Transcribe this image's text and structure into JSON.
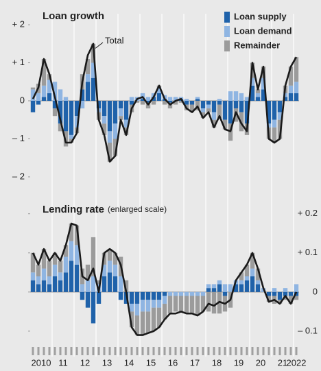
{
  "chart_data": [
    {
      "type": "bar",
      "stacked": true,
      "title": "Loan growth",
      "ylim": [
        -2.2,
        2.2
      ],
      "yticks": [
        {
          "value": 2,
          "label": "+ 2"
        },
        {
          "value": 1,
          "label": "+ 1"
        },
        0,
        {
          "value": -1,
          "label": "– 1"
        },
        {
          "value": -2,
          "label": "– 2"
        }
      ],
      "legend": "top-right",
      "series": [
        {
          "name": "Loan supply",
          "color": "#1f62aa",
          "values": [
            -0.3,
            -0.1,
            0.1,
            0.2,
            -0.2,
            -0.6,
            -0.8,
            -0.9,
            -0.4,
            0.3,
            0.5,
            0.6,
            -0.2,
            -0.4,
            -0.8,
            -0.6,
            -0.2,
            -0.5,
            -0.1,
            0,
            0.05,
            -0.05,
            0.1,
            0.2,
            0.05,
            -0.05,
            0,
            0.05,
            -0.1,
            -0.1,
            0.05,
            -0.2,
            -0.1,
            -0.3,
            -0.1,
            -0.5,
            -0.6,
            -0.2,
            -0.3,
            -0.6,
            0.4,
            0.1,
            0.3,
            -0.6,
            -0.5,
            -0.3,
            0.1,
            0.2,
            0.2
          ]
        },
        {
          "name": "Loan demand",
          "color": "#8fb5e2",
          "values": [
            0.3,
            0.2,
            0.3,
            0.35,
            0.5,
            0.3,
            0.1,
            -0.1,
            -0.3,
            -0.2,
            0.2,
            0.4,
            -0.1,
            -0.2,
            -0.3,
            -0.4,
            -0.2,
            -0.2,
            0.1,
            0.1,
            0.15,
            0.1,
            0.1,
            0.15,
            0.1,
            0.1,
            0.1,
            0.05,
            0.05,
            0,
            0.05,
            -0.1,
            -0.1,
            -0.2,
            0.05,
            0,
            0.25,
            0.25,
            0.2,
            0.1,
            0.2,
            0.1,
            0.3,
            -0.1,
            -0.2,
            -0.2,
            0.1,
            0.2,
            0.3
          ]
        },
        {
          "name": "Remainder",
          "color": "#9b9b9b",
          "values": [
            0.05,
            0.25,
            0.7,
            0.15,
            -0.2,
            -0.2,
            -0.4,
            -0.1,
            -0.15,
            0.4,
            0.4,
            0.5,
            -0.2,
            -0.3,
            -0.5,
            -0.45,
            -0.1,
            -0.2,
            -0.2,
            -0.05,
            -0.1,
            -0.15,
            -0.1,
            0.05,
            -0.1,
            -0.15,
            -0.1,
            -0.05,
            -0.15,
            -0.2,
            -0.25,
            -0.15,
            -0.1,
            -0.2,
            -0.35,
            -0.25,
            -0.45,
            -0.35,
            -0.5,
            -0.3,
            0.4,
            0.1,
            0.3,
            -0.3,
            -0.4,
            -0.5,
            0.2,
            0.5,
            0.65
          ]
        },
        {
          "name": "Total",
          "type": "line",
          "color": "#1a1a1a",
          "values": [
            0.05,
            0.35,
            1.1,
            0.7,
            0.1,
            -0.5,
            -1.1,
            -1.1,
            -0.85,
            0.5,
            1.2,
            1.5,
            -0.5,
            -0.9,
            -1.6,
            -1.45,
            -0.5,
            -0.9,
            -0.2,
            0.05,
            0.1,
            -0.1,
            0.1,
            0.4,
            0.05,
            -0.1,
            0,
            0.05,
            -0.2,
            -0.3,
            -0.15,
            -0.45,
            -0.3,
            -0.7,
            -0.4,
            -0.75,
            -0.8,
            -0.3,
            -0.6,
            -0.8,
            1.0,
            0.3,
            0.9,
            -1.0,
            -1.1,
            -1.0,
            0.4,
            0.9,
            1.15
          ]
        }
      ]
    },
    {
      "type": "bar",
      "stacked": true,
      "title": "Lending rate",
      "subtitle": "(enlarged scale)",
      "ylim": [
        -0.13,
        0.21
      ],
      "yticks": [
        {
          "value": 0.2,
          "label": "+ 0.2"
        },
        {
          "value": 0.1,
          "label": "+ 0.1"
        },
        0,
        {
          "value": -0.1,
          "label": "– 0.1"
        }
      ],
      "categories": [
        "2010",
        null,
        null,
        null,
        "11",
        null,
        null,
        null,
        "12",
        null,
        null,
        null,
        "13",
        null,
        null,
        null,
        "14",
        null,
        null,
        null,
        "15",
        null,
        null,
        null,
        "16",
        null,
        null,
        null,
        "17",
        null,
        null,
        null,
        "18",
        null,
        null,
        null,
        "19",
        null,
        null,
        null,
        "20",
        null,
        null,
        null,
        "21",
        null,
        null,
        null,
        "2022"
      ],
      "series": [
        {
          "color": "#1f62aa",
          "values": [
            0.03,
            0.02,
            0.03,
            0.02,
            0.04,
            0.03,
            0.05,
            0.08,
            0.07,
            -0.02,
            -0.04,
            -0.08,
            -0.03,
            0.04,
            0.05,
            0.04,
            -0.02,
            -0.03,
            -0.03,
            -0.03,
            -0.02,
            -0.02,
            -0.02,
            -0.02,
            -0.01,
            0,
            0,
            0,
            0,
            0,
            0,
            0,
            0.01,
            0.01,
            0.02,
            -0.01,
            0,
            0.02,
            0.02,
            0.03,
            0.04,
            0.02,
            0,
            -0.01,
            -0.01,
            -0.02,
            -0.01,
            -0.01,
            -0.01
          ]
        },
        {
          "color": "#8fb5e2",
          "values": [
            0.02,
            0.02,
            0.03,
            0.02,
            0.03,
            0.02,
            0.04,
            0.05,
            0.05,
            0.02,
            0.03,
            0.04,
            0.02,
            0.03,
            0.03,
            0.03,
            0.04,
            0,
            -0.02,
            -0.03,
            -0.03,
            -0.03,
            -0.02,
            -0.02,
            -0.02,
            -0.01,
            -0.01,
            -0.01,
            -0.01,
            -0.01,
            -0.01,
            -0.01,
            0.01,
            0.01,
            0.01,
            0.02,
            0.02,
            0.01,
            0.01,
            0.01,
            0.02,
            0.01,
            0.01,
            0,
            0.01,
            0,
            0.01,
            0,
            0.02
          ]
        },
        {
          "color": "#9b9b9b",
          "values": [
            0.05,
            0.03,
            0.05,
            0.04,
            0.03,
            0.03,
            0.03,
            0.045,
            0.05,
            0.04,
            0.04,
            0.1,
            0.01,
            0.03,
            0.03,
            0.03,
            0.05,
            0.03,
            -0.04,
            -0.05,
            -0.06,
            -0.055,
            -0.06,
            -0.05,
            -0.04,
            -0.045,
            -0.04,
            -0.04,
            -0.045,
            -0.045,
            -0.05,
            -0.04,
            -0.05,
            -0.055,
            -0.055,
            -0.04,
            -0.04,
            0,
            0.02,
            0.03,
            0.04,
            0.03,
            0,
            -0.015,
            -0.02,
            -0.01,
            -0.01,
            -0.02,
            -0.01
          ]
        },
        {
          "type": "line",
          "color": "#1a1a1a",
          "values": [
            0.1,
            0.07,
            0.11,
            0.08,
            0.1,
            0.08,
            0.12,
            0.175,
            0.17,
            0.04,
            0.03,
            0.06,
            0,
            0.1,
            0.11,
            0.1,
            0.07,
            0,
            -0.09,
            -0.11,
            -0.11,
            -0.105,
            -0.1,
            -0.09,
            -0.07,
            -0.055,
            -0.055,
            -0.05,
            -0.055,
            -0.055,
            -0.06,
            -0.05,
            -0.03,
            -0.035,
            -0.025,
            -0.03,
            -0.02,
            0.03,
            0.05,
            0.07,
            0.1,
            0.06,
            0.01,
            -0.025,
            -0.02,
            -0.03,
            -0.01,
            -0.03,
            0
          ]
        }
      ]
    }
  ]
}
